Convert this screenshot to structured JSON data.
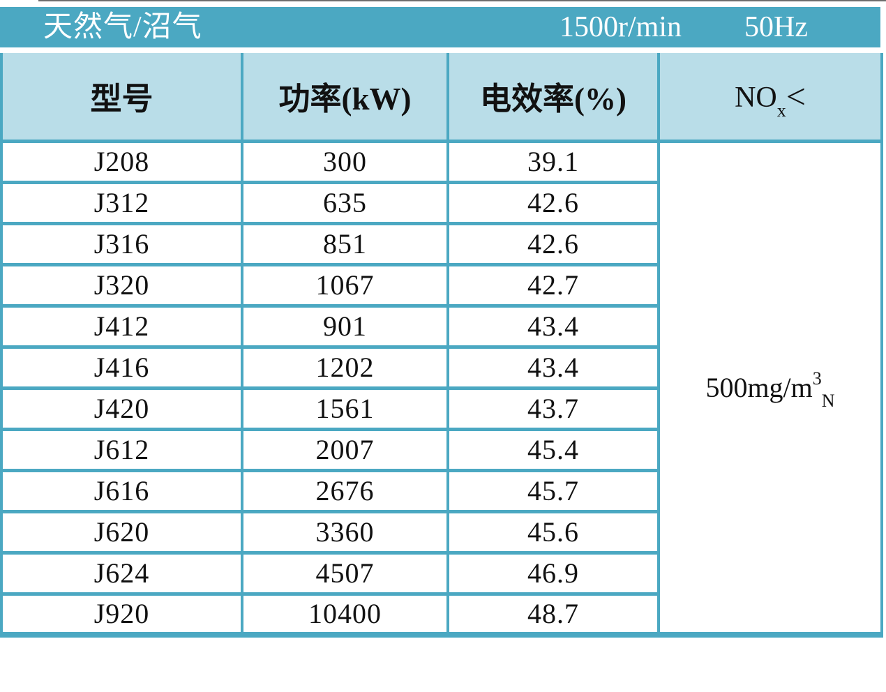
{
  "title_bar": {
    "fuel_type": "天然气/沼气",
    "speed": "1500r/min",
    "frequency": "50Hz"
  },
  "table": {
    "columns": [
      {
        "label": "型号"
      },
      {
        "label": "功率(kW)"
      },
      {
        "label": "电效率(%)"
      },
      {
        "label_base": "NO",
        "label_sub": "x",
        "label_lt": "<"
      }
    ],
    "rows": [
      {
        "model": "J208",
        "power": "300",
        "efficiency": "39.1"
      },
      {
        "model": "J312",
        "power": "635",
        "efficiency": "42.6"
      },
      {
        "model": "J316",
        "power": "851",
        "efficiency": "42.6"
      },
      {
        "model": "J320",
        "power": "1067",
        "efficiency": "42.7"
      },
      {
        "model": "J412",
        "power": "901",
        "efficiency": "43.4"
      },
      {
        "model": "J416",
        "power": "1202",
        "efficiency": "43.4"
      },
      {
        "model": "J420",
        "power": "1561",
        "efficiency": "43.7"
      },
      {
        "model": "J612",
        "power": "2007",
        "efficiency": "45.4"
      },
      {
        "model": "J616",
        "power": "2676",
        "efficiency": "45.7"
      },
      {
        "model": "J620",
        "power": "3360",
        "efficiency": "45.6"
      },
      {
        "model": "J624",
        "power": "4507",
        "efficiency": "46.9"
      },
      {
        "model": "J920",
        "power": "10400",
        "efficiency": "48.7"
      }
    ],
    "nox_limit": {
      "base": "500mg/m",
      "sup": "3",
      "sub": "N"
    }
  },
  "colors": {
    "teal_bar": "#4BA8C2",
    "header_fill": "#B9DDE8",
    "cell_fill": "#FFFFFF",
    "text": "#111111",
    "title_text": "#FFFFFF"
  }
}
